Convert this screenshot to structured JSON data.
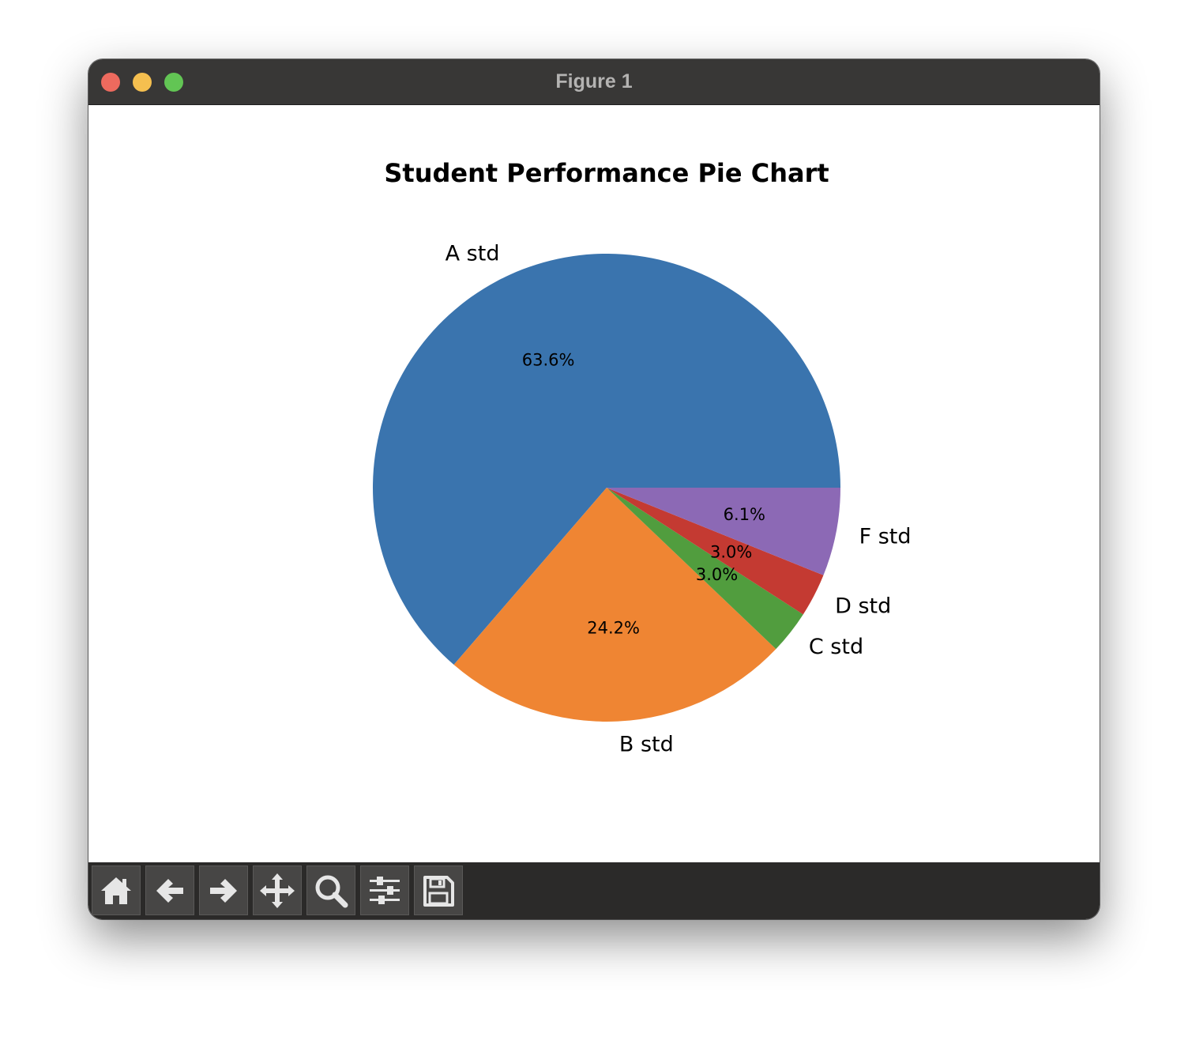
{
  "window": {
    "title": "Figure 1"
  },
  "toolbar": {
    "buttons": [
      {
        "name": "home-button",
        "icon": "home-icon"
      },
      {
        "name": "back-button",
        "icon": "arrow-left-icon"
      },
      {
        "name": "forward-button",
        "icon": "arrow-right-icon"
      },
      {
        "name": "pan-button",
        "icon": "move-icon"
      },
      {
        "name": "zoom-button",
        "icon": "magnifier-icon"
      },
      {
        "name": "configure-subplots-button",
        "icon": "sliders-icon"
      },
      {
        "name": "save-button",
        "icon": "floppy-disk-icon"
      }
    ]
  },
  "chart_data": {
    "type": "pie",
    "title": "Student Performance Pie Chart",
    "categories": [
      "A std",
      "B std",
      "C std",
      "D std",
      "F std"
    ],
    "values": [
      63.6,
      24.2,
      3.0,
      3.0,
      6.1
    ],
    "percent_labels": [
      "63.6%",
      "24.2%",
      "3.0%",
      "3.0%",
      "6.1%"
    ],
    "colors": [
      "#3a74ae",
      "#ef8533",
      "#519d3e",
      "#c43a32",
      "#8c69b5"
    ],
    "start_angle_deg": 0,
    "direction": "counterclockwise",
    "legend": "none"
  }
}
